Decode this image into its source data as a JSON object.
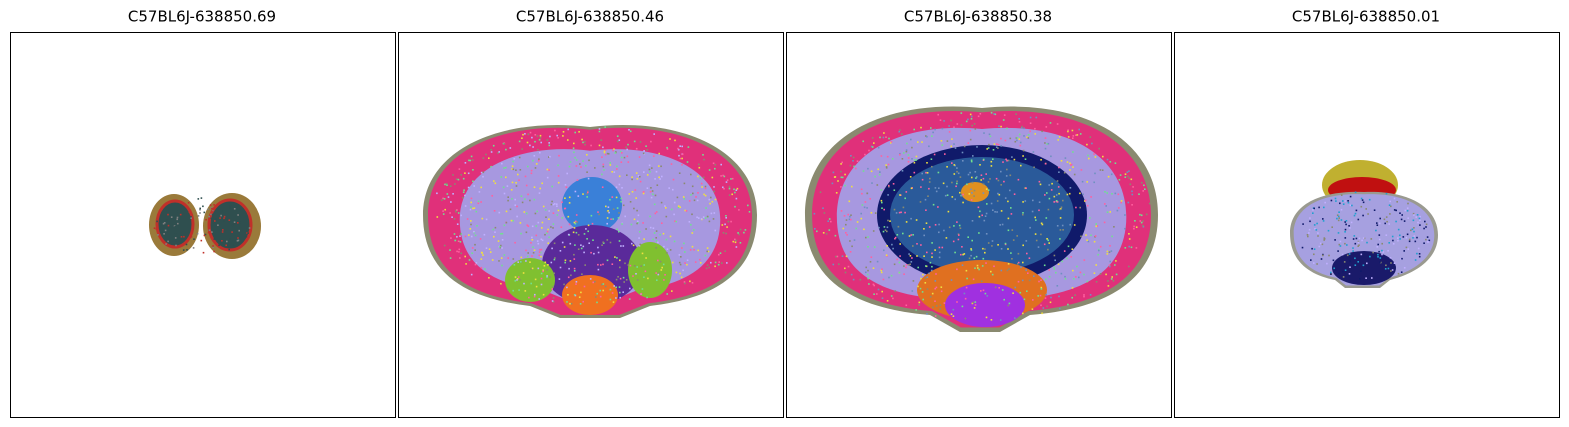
{
  "panels": [
    {
      "title": "C57BL6J-638850.69"
    },
    {
      "title": "C57BL6J-638850.46"
    },
    {
      "title": "C57BL6J-638850.38"
    },
    {
      "title": "C57BL6J-638850.01"
    }
  ]
}
